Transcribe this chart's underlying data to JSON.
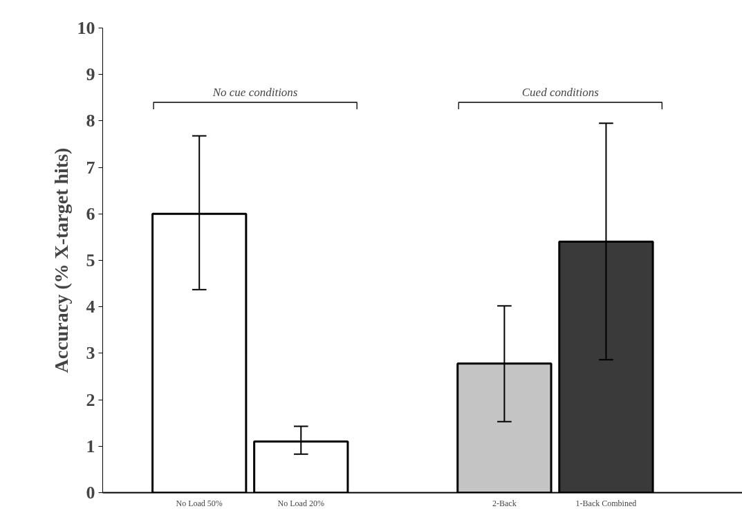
{
  "chart_data": {
    "type": "bar",
    "ylabel": "Accuracy (% X-target hits)",
    "categories": [
      "No Load 50%",
      "No Load 20%",
      null,
      "2-Back",
      "1-Back Combined"
    ],
    "values": [
      6.0,
      1.1,
      null,
      2.78,
      5.4
    ],
    "errors": [
      [
        4.37,
        7.68
      ],
      [
        0.83,
        1.43
      ],
      null,
      [
        1.53,
        4.02
      ],
      [
        2.86,
        7.95
      ]
    ],
    "colors": [
      "#ffffff",
      "#ffffff",
      "#ffffff",
      "#c4c4c4",
      "#3a3a3a"
    ],
    "ylim": [
      0,
      10
    ],
    "yticks": [
      0,
      1,
      2,
      3,
      4,
      5,
      6,
      7,
      8,
      9,
      10
    ],
    "annotations": [
      "No cue conditions",
      "Cued conditions"
    ],
    "grid": false
  }
}
